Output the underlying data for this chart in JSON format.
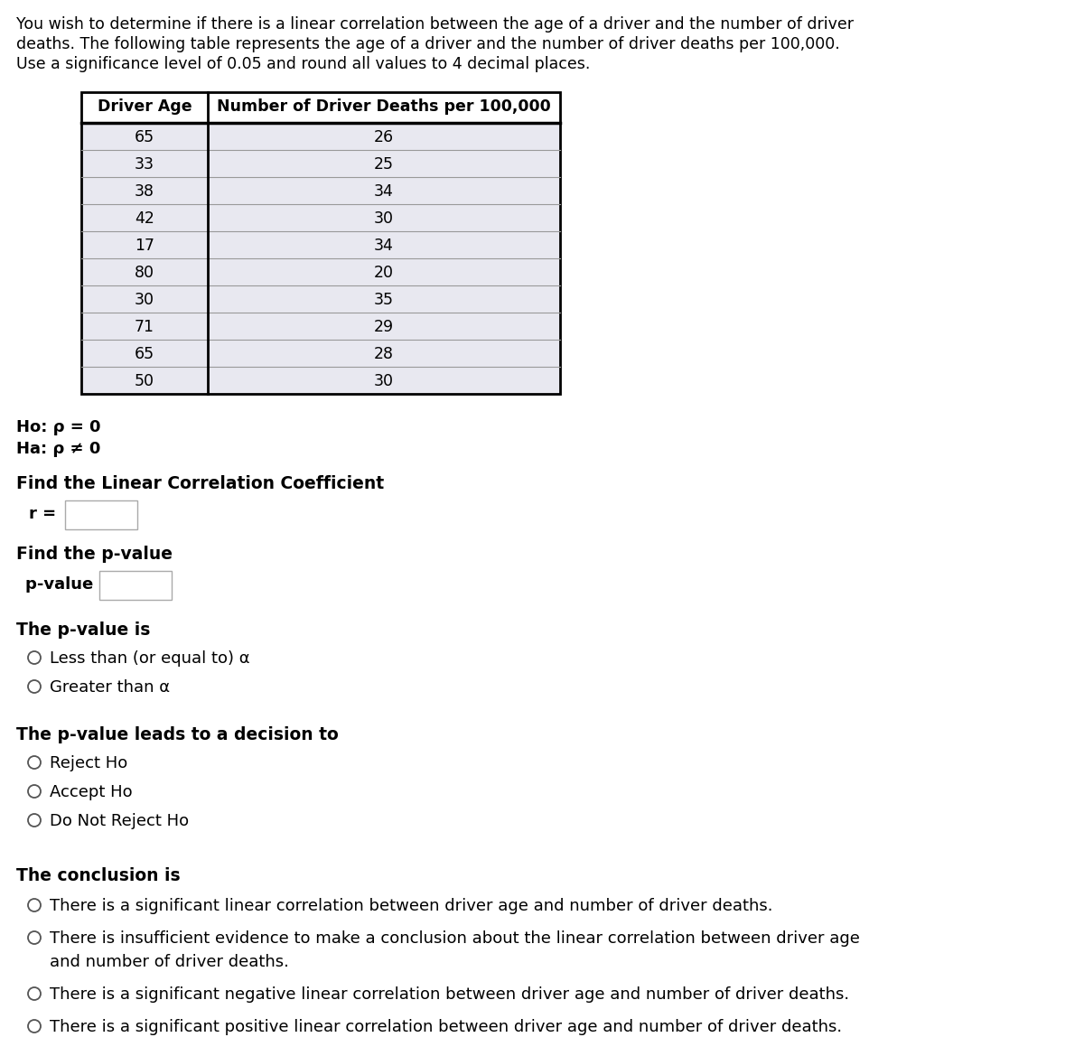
{
  "intro_text_lines": [
    "You wish to determine if there is a linear correlation between the age of a driver and the number of driver",
    "deaths. The following table represents the age of a driver and the number of driver deaths per 100,000.",
    "Use a significance level of 0.05 and round all values to 4 decimal places."
  ],
  "table_header": [
    "Driver Age",
    "Number of Driver Deaths per 100,000"
  ],
  "table_data": [
    [
      65,
      26
    ],
    [
      33,
      25
    ],
    [
      38,
      34
    ],
    [
      42,
      30
    ],
    [
      17,
      34
    ],
    [
      80,
      20
    ],
    [
      30,
      35
    ],
    [
      71,
      29
    ],
    [
      65,
      28
    ],
    [
      50,
      30
    ]
  ],
  "h0_text": "Ho: ρ = 0",
  "ha_text": "Ha: ρ ≠ 0",
  "find_r_label": "Find the Linear Correlation Coefficient",
  "r_label": "r =",
  "find_p_label": "Find the p-value",
  "p_label": "p-value =",
  "p_value_is_label": "The p-value is",
  "p_value_options": [
    "Less than (or equal to) α",
    "Greater than α"
  ],
  "decision_label": "The p-value leads to a decision to",
  "decision_options": [
    "Reject Ho",
    "Accept Ho",
    "Do Not Reject Ho"
  ],
  "conclusion_label": "The conclusion is",
  "conclusion_options": [
    [
      "There is a significant linear correlation between driver age and number of driver deaths."
    ],
    [
      "There is insufficient evidence to make a conclusion about the linear correlation between driver age",
      "and number of driver deaths."
    ],
    [
      "There is a significant negative linear correlation between driver age and number of driver deaths."
    ],
    [
      "There is a significant positive linear correlation between driver age and number of driver deaths."
    ]
  ],
  "bg_color": "#ffffff",
  "text_color": "#000000",
  "table_header_bg": "#ffffff",
  "table_row_bg": "#e8e8f0",
  "table_border_color": "#000000",
  "font_size_intro": 12.5,
  "font_size_table_header": 12.5,
  "font_size_table_body": 12.5,
  "font_size_body": 13.0,
  "font_size_label": 13.5,
  "input_box_color": "#ffffff",
  "input_box_border": "#aaaaaa",
  "radio_color": "#555555"
}
